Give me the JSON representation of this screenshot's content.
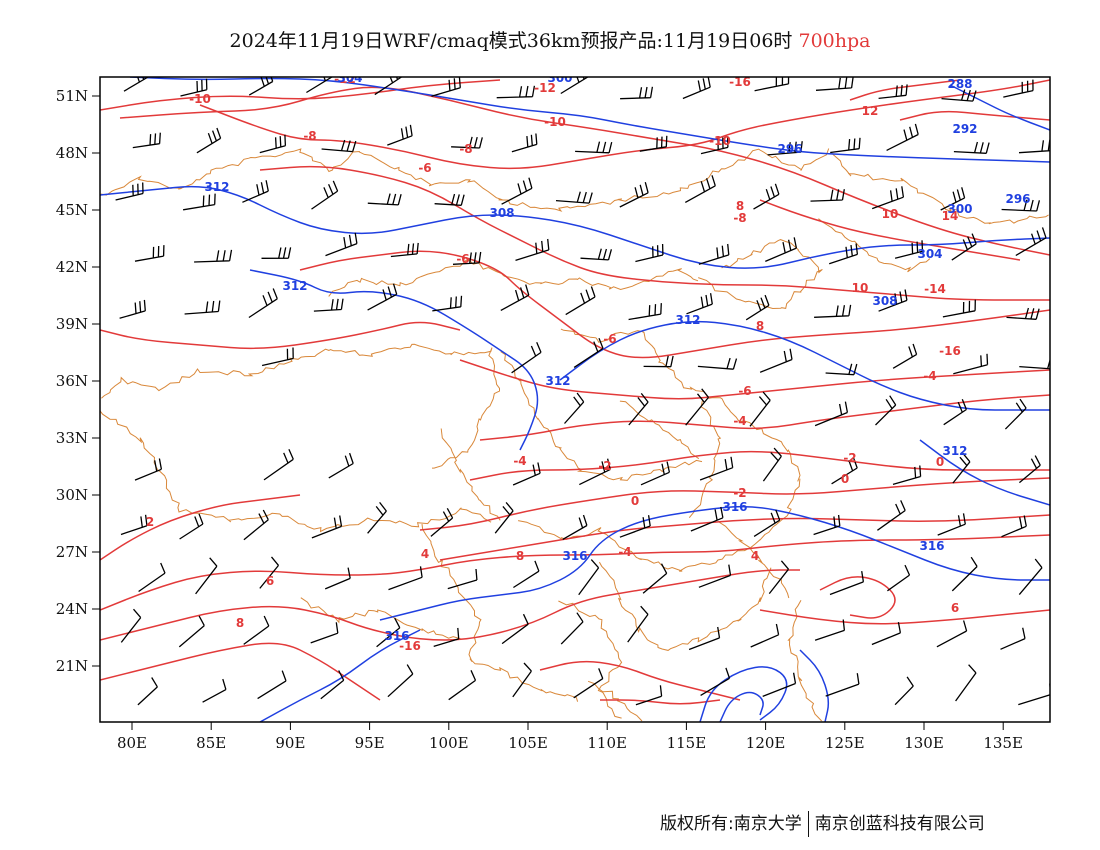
{
  "title": {
    "main": "2024年11月19日WRF/cmaq模式36km预报产品:11月19日06时",
    "level": "700hpa"
  },
  "x_ticks": [
    "80E",
    "85E",
    "90E",
    "95E",
    "100E",
    "105E",
    "110E",
    "115E",
    "120E",
    "125E",
    "130E",
    "135E"
  ],
  "y_ticks": [
    "51N",
    "48N",
    "45N",
    "42N",
    "39N",
    "36N",
    "33N",
    "30N",
    "27N",
    "24N",
    "21N"
  ],
  "footer": {
    "left": "版权所有:南京大学",
    "right": "南京创蓝科技有限公司"
  },
  "colors": {
    "temperature": "#e23a3a",
    "height": "#2040e0",
    "boundary": "#d9883a",
    "wind": "#000000",
    "frame": "#000000"
  },
  "map_data": {
    "type": "weather-map",
    "extent": {
      "lon": [
        78,
        138
      ],
      "lat": [
        18,
        52
      ]
    },
    "temperature_labels": [
      "-12",
      "-12",
      "-10",
      "-10",
      "-10",
      "-8",
      "-8",
      "-8",
      "-6",
      "-6",
      "-6",
      "-6",
      "-4",
      "-4",
      "-4",
      "-2",
      "-2",
      "-2",
      "0",
      "0",
      "0",
      "2",
      "4",
      "4",
      "6",
      "6",
      "8",
      "8",
      "8",
      "8",
      "10",
      "10",
      "12",
      "14",
      "-14",
      "-16",
      "-16",
      "-16",
      "-4"
    ],
    "height_labels": [
      "304",
      "300",
      "288",
      "292",
      "296",
      "296",
      "304",
      "300",
      "308",
      "308",
      "312",
      "312",
      "312",
      "312",
      "312",
      "316",
      "316",
      "316",
      "316"
    ],
    "wind_units": "barbs"
  }
}
